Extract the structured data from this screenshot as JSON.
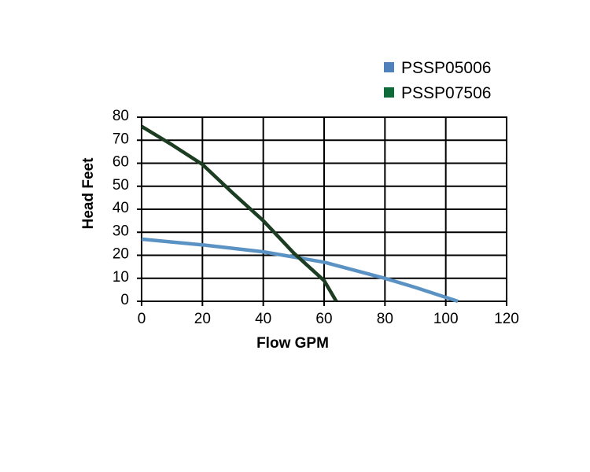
{
  "chart_data": {
    "type": "line",
    "xlabel": "Flow GPM",
    "ylabel": "Head Feet",
    "xlim": [
      0,
      120
    ],
    "ylim": [
      0,
      80
    ],
    "xticks": [
      "0",
      "20",
      "40",
      "60",
      "80",
      "100",
      "120"
    ],
    "yticks": [
      "0",
      "10",
      "20",
      "30",
      "40",
      "50",
      "60",
      "70",
      "80"
    ],
    "grid": true,
    "legend_position": "top-right",
    "series": [
      {
        "name": "PSSP05006",
        "color": "#5b92c4",
        "points": [
          [
            0,
            27
          ],
          [
            20,
            24.5
          ],
          [
            40,
            21.5
          ],
          [
            60,
            17
          ],
          [
            80,
            10
          ],
          [
            90,
            6
          ],
          [
            104,
            0
          ]
        ]
      },
      {
        "name": "PSSP07506",
        "color": "#1d3d22",
        "points": [
          [
            0,
            76
          ],
          [
            10,
            68
          ],
          [
            20,
            59.5
          ],
          [
            30,
            47
          ],
          [
            40,
            35
          ],
          [
            50,
            21
          ],
          [
            60,
            9
          ],
          [
            64,
            0
          ]
        ]
      }
    ],
    "legend_colors": [
      "#4f81bd",
      "#0e6b3a"
    ]
  }
}
